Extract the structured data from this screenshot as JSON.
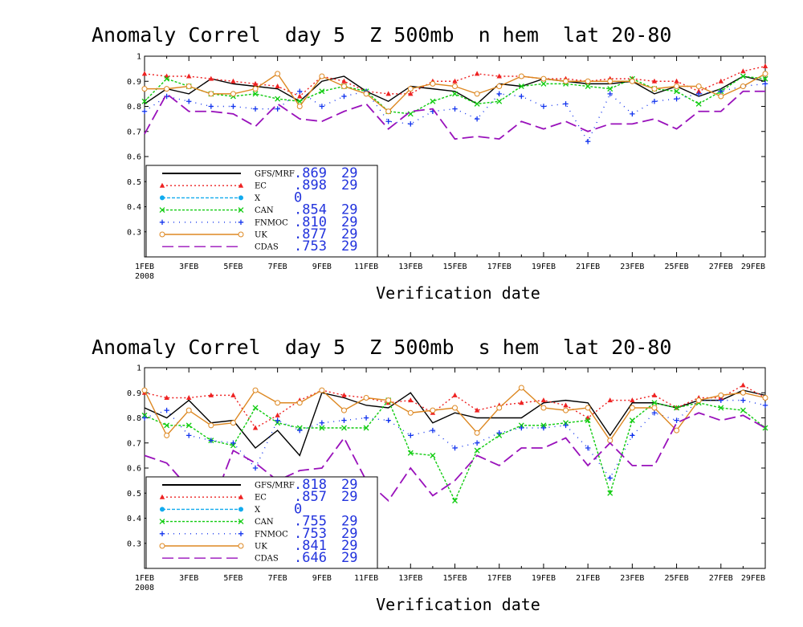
{
  "chart_data": [
    {
      "type": "line",
      "title": "Anomaly Correl  day 5  Z 500mb  n hem  lat 20-80",
      "xlabel": "Verification date",
      "ylabel": "",
      "x_tick_labels": [
        "1FEB",
        "3FEB",
        "5FEB",
        "7FEB",
        "9FEB",
        "11FEB",
        "13FEB",
        "15FEB",
        "17FEB",
        "19FEB",
        "21FEB",
        "23FEB",
        "25FEB",
        "27FEB",
        "29FEB"
      ],
      "x_year_label": "2008",
      "x_range": [
        1,
        29
      ],
      "ylim": [
        0.2,
        1.0
      ],
      "y_ticks": [
        0.3,
        0.4,
        0.5,
        0.6,
        0.7,
        0.8,
        0.9,
        1
      ],
      "y_tick_labels": [
        "0.3",
        "0.4",
        "0.5",
        "0.6",
        "0.7",
        "0.8",
        "0.9",
        "1"
      ],
      "grid": false,
      "legend_placement": "bottom-left",
      "series": [
        {
          "name": "GFS/MRF",
          "color": "#000000",
          "dash": "",
          "marker": "none",
          "mean": ".869",
          "count": "29",
          "values": [
            0.81,
            0.87,
            0.85,
            0.91,
            0.89,
            0.88,
            0.87,
            0.82,
            0.9,
            0.92,
            0.86,
            0.82,
            0.88,
            0.87,
            0.86,
            0.81,
            0.89,
            0.88,
            0.91,
            0.9,
            0.89,
            0.89,
            0.9,
            0.85,
            0.88,
            0.84,
            0.87,
            0.92,
            0.9
          ]
        },
        {
          "name": "EC",
          "color": "#ee2222",
          "dash": "2,3",
          "marker": "triangle",
          "mean": ".898",
          "count": "29",
          "values": [
            0.93,
            0.92,
            0.92,
            0.91,
            0.9,
            0.89,
            0.88,
            0.84,
            0.92,
            0.9,
            0.86,
            0.85,
            0.85,
            0.9,
            0.9,
            0.93,
            0.92,
            0.92,
            0.91,
            0.91,
            0.9,
            0.91,
            0.91,
            0.9,
            0.9,
            0.86,
            0.9,
            0.94,
            0.96
          ]
        },
        {
          "name": "X",
          "color": "#11aaee",
          "dash": "4,2",
          "marker": "circle",
          "mean": "0",
          "count": "",
          "values": []
        },
        {
          "name": "CAN",
          "color": "#11cc11",
          "dash": "3,2",
          "marker": "x",
          "mean": ".854",
          "count": "29",
          "values": [
            0.82,
            0.91,
            0.88,
            0.85,
            0.84,
            0.85,
            0.83,
            0.82,
            0.86,
            0.88,
            0.86,
            0.78,
            0.77,
            0.82,
            0.85,
            0.81,
            0.82,
            0.88,
            0.89,
            0.89,
            0.88,
            0.87,
            0.91,
            0.87,
            0.86,
            0.81,
            0.86,
            0.92,
            0.91
          ]
        },
        {
          "name": "FNMOC",
          "color": "#1133ee",
          "dash": "1,6",
          "marker": "plus",
          "mean": ".810",
          "count": "29",
          "values": [
            0.78,
            0.84,
            0.82,
            0.8,
            0.8,
            0.79,
            0.79,
            0.86,
            0.8,
            0.84,
            0.86,
            0.74,
            0.73,
            0.78,
            0.79,
            0.75,
            0.85,
            0.84,
            0.8,
            0.81,
            0.66,
            0.85,
            0.77,
            0.82,
            0.83,
            0.85,
            0.86,
            0.88,
            0.89
          ]
        },
        {
          "name": "UK",
          "color": "#dd8822",
          "dash": "",
          "marker": "circle-open",
          "mean": ".877",
          "count": "29",
          "values": [
            0.87,
            0.87,
            0.88,
            0.85,
            0.85,
            0.87,
            0.93,
            0.8,
            0.92,
            0.88,
            0.85,
            0.78,
            0.87,
            0.89,
            0.88,
            0.85,
            0.88,
            0.92,
            0.91,
            0.9,
            0.9,
            0.9,
            0.9,
            0.87,
            0.88,
            0.88,
            0.84,
            0.88,
            0.93
          ]
        },
        {
          "name": "CDAS",
          "color": "#9911bb",
          "dash": "14,6",
          "marker": "none",
          "mean": ".753",
          "count": "29",
          "values": [
            0.69,
            0.85,
            0.78,
            0.78,
            0.77,
            0.72,
            0.81,
            0.75,
            0.74,
            0.78,
            0.81,
            0.71,
            0.78,
            0.79,
            0.67,
            0.68,
            0.67,
            0.74,
            0.71,
            0.74,
            0.7,
            0.73,
            0.73,
            0.75,
            0.71,
            0.78,
            0.78,
            0.86,
            0.86
          ]
        }
      ]
    },
    {
      "type": "line",
      "title": "Anomaly Correl  day 5  Z 500mb  s hem  lat 20-80",
      "xlabel": "Verification date",
      "ylabel": "",
      "x_tick_labels": [
        "1FEB",
        "3FEB",
        "5FEB",
        "7FEB",
        "9FEB",
        "11FEB",
        "13FEB",
        "15FEB",
        "17FEB",
        "19FEB",
        "21FEB",
        "23FEB",
        "25FEB",
        "27FEB",
        "29FEB"
      ],
      "x_year_label": "2008",
      "x_range": [
        1,
        29
      ],
      "ylim": [
        0.2,
        1.0
      ],
      "y_ticks": [
        0.3,
        0.4,
        0.5,
        0.6,
        0.7,
        0.8,
        0.9,
        1
      ],
      "y_tick_labels": [
        "0.3",
        "0.4",
        "0.5",
        "0.6",
        "0.7",
        "0.8",
        "0.9",
        "1"
      ],
      "grid": false,
      "legend_placement": "bottom-left",
      "series": [
        {
          "name": "GFS/MRF",
          "color": "#000000",
          "dash": "",
          "marker": "none",
          "mean": ".818",
          "count": "29",
          "values": [
            0.84,
            0.8,
            0.87,
            0.78,
            0.79,
            0.68,
            0.75,
            0.65,
            0.9,
            0.88,
            0.85,
            0.84,
            0.9,
            0.78,
            0.82,
            0.8,
            0.8,
            0.8,
            0.86,
            0.87,
            0.86,
            0.73,
            0.86,
            0.86,
            0.84,
            0.87,
            0.87,
            0.91,
            0.89
          ]
        },
        {
          "name": "EC",
          "color": "#ee2222",
          "dash": "2,3",
          "marker": "triangle",
          "mean": ".857",
          "count": "29",
          "values": [
            0.9,
            0.88,
            0.88,
            0.89,
            0.89,
            0.76,
            0.81,
            0.87,
            0.91,
            0.89,
            0.88,
            0.86,
            0.87,
            0.82,
            0.89,
            0.83,
            0.85,
            0.86,
            0.87,
            0.85,
            0.8,
            0.87,
            0.87,
            0.89,
            0.84,
            0.88,
            0.88,
            0.93,
            0.88
          ]
        },
        {
          "name": "X",
          "color": "#11aaee",
          "dash": "4,2",
          "marker": "circle",
          "mean": "0",
          "count": "",
          "values": []
        },
        {
          "name": "CAN",
          "color": "#11cc11",
          "dash": "3,2",
          "marker": "x",
          "mean": ".755",
          "count": "29",
          "values": [
            0.81,
            0.77,
            0.77,
            0.71,
            0.69,
            0.84,
            0.78,
            0.76,
            0.76,
            0.76,
            0.76,
            0.87,
            0.66,
            0.65,
            0.47,
            0.67,
            0.73,
            0.77,
            0.77,
            0.78,
            0.79,
            0.5,
            0.79,
            0.86,
            0.84,
            0.86,
            0.84,
            0.83,
            0.76
          ]
        },
        {
          "name": "FNMOC",
          "color": "#1133ee",
          "dash": "1,6",
          "marker": "plus",
          "mean": ".753",
          "count": "29",
          "values": [
            0.8,
            0.83,
            0.73,
            0.71,
            0.7,
            0.6,
            0.79,
            0.75,
            0.78,
            0.79,
            0.8,
            0.79,
            0.73,
            0.75,
            0.68,
            0.7,
            0.74,
            0.76,
            0.76,
            0.77,
            0.68,
            0.56,
            0.73,
            0.82,
            0.79,
            0.87,
            0.87,
            0.87,
            0.85
          ]
        },
        {
          "name": "UK",
          "color": "#dd8822",
          "dash": "",
          "marker": "circle-open",
          "mean": ".841",
          "count": "29",
          "values": [
            0.91,
            0.73,
            0.83,
            0.77,
            0.78,
            0.91,
            0.86,
            0.86,
            0.91,
            0.83,
            0.88,
            0.87,
            0.82,
            0.83,
            0.84,
            0.74,
            0.84,
            0.92,
            0.84,
            0.83,
            0.84,
            0.71,
            0.84,
            0.84,
            0.75,
            0.87,
            0.89,
            0.9,
            0.88
          ]
        },
        {
          "name": "CDAS",
          "color": "#9911bb",
          "dash": "14,6",
          "marker": "none",
          "mean": ".646",
          "count": "29",
          "values": [
            0.65,
            0.62,
            0.52,
            0.44,
            0.67,
            0.62,
            0.55,
            0.59,
            0.6,
            0.72,
            0.55,
            0.47,
            0.6,
            0.49,
            0.55,
            0.65,
            0.61,
            0.68,
            0.68,
            0.72,
            0.61,
            0.7,
            0.61,
            0.61,
            0.78,
            0.82,
            0.79,
            0.81,
            0.76
          ]
        }
      ]
    }
  ]
}
